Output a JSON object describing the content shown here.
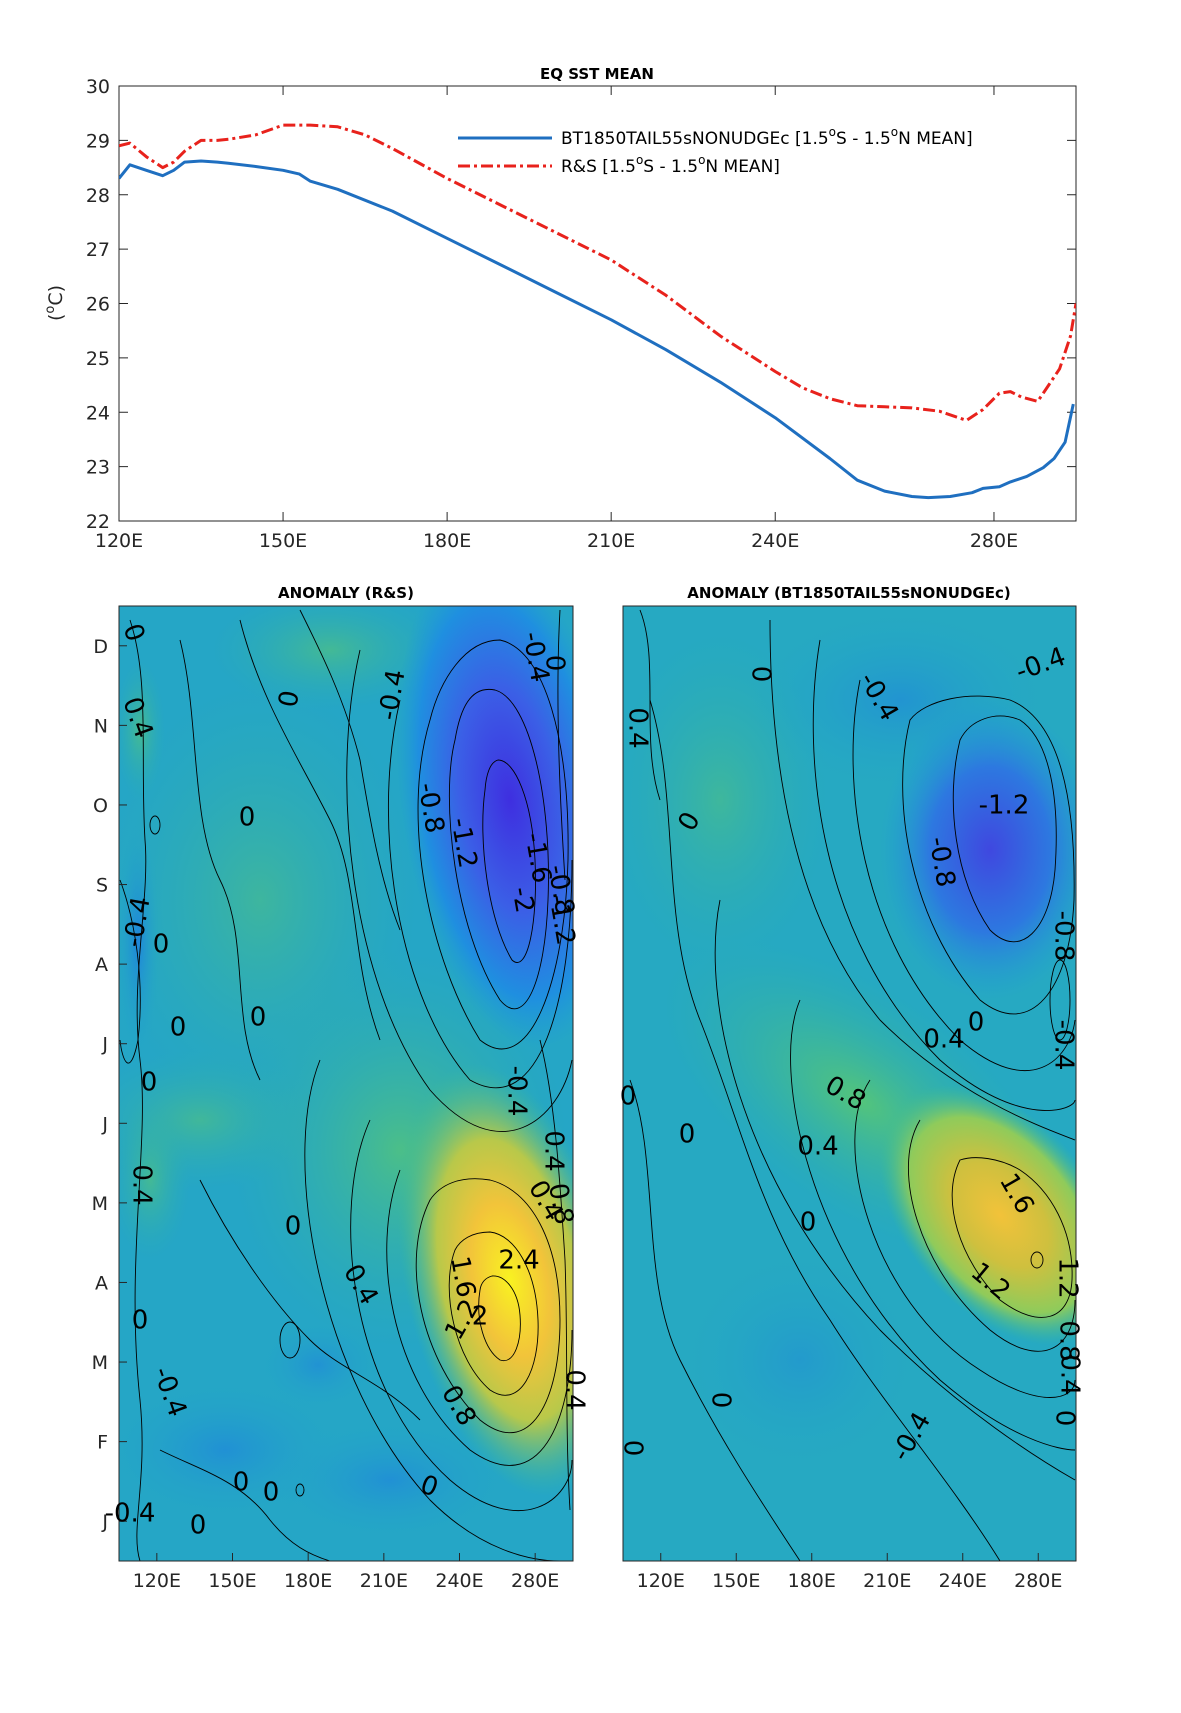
{
  "chart_data": [
    {
      "type": "line",
      "title": "EQ SST MEAN",
      "ylabel": "(oC)",
      "ylabel_parts": {
        "open": "(",
        "sup": "o",
        "unit": "C)"
      },
      "xlim": [
        120,
        295
      ],
      "ylim": [
        22,
        30
      ],
      "x_ticks": [
        120,
        150,
        180,
        210,
        240,
        280
      ],
      "x_tick_labels": [
        "120E",
        "150E",
        "180E",
        "210E",
        "240E",
        "280E"
      ],
      "y_ticks": [
        22,
        23,
        24,
        25,
        26,
        27,
        28,
        29,
        30
      ],
      "legend": "top-right",
      "series": [
        {
          "name": "BT1850TAIL55sNONUDGEc [1.5oS - 1.5oN MEAN]",
          "legend_parts": {
            "a": "BT1850TAIL55sNONUDGEc [1.5",
            "s1": "o",
            "b": "S - 1.5",
            "s2": "o",
            "c": "N MEAN]"
          },
          "color": "#1f6fc0",
          "style": "solid",
          "x": [
            120,
            122,
            125,
            128,
            130,
            132,
            135,
            138,
            140,
            145,
            150,
            153,
            155,
            160,
            170,
            180,
            190,
            200,
            210,
            220,
            230,
            240,
            250,
            255,
            260,
            265,
            268,
            272,
            276,
            278,
            281,
            283,
            286,
            289,
            291,
            293,
            294.5
          ],
          "y": [
            28.3,
            28.55,
            28.45,
            28.35,
            28.45,
            28.6,
            28.62,
            28.6,
            28.58,
            28.52,
            28.45,
            28.38,
            28.25,
            28.1,
            27.7,
            27.2,
            26.7,
            26.2,
            25.7,
            25.15,
            24.55,
            23.9,
            23.15,
            22.75,
            22.55,
            22.45,
            22.43,
            22.45,
            22.52,
            22.6,
            22.63,
            22.72,
            22.82,
            22.98,
            23.15,
            23.45,
            24.15
          ]
        },
        {
          "name": "R&S [1.5oS - 1.5oN MEAN]",
          "legend_parts": {
            "a": "R&S [1.5",
            "s1": "o",
            "b": "S - 1.5",
            "s2": "o",
            "c": "N MEAN]"
          },
          "color": "#e8221c",
          "style": "dashdot",
          "x": [
            120,
            122,
            125,
            128,
            130,
            132,
            135,
            138,
            140,
            145,
            150,
            155,
            160,
            165,
            170,
            180,
            190,
            200,
            210,
            220,
            230,
            240,
            245,
            250,
            255,
            260,
            265,
            270,
            275,
            278,
            281,
            283,
            285,
            288,
            290,
            292,
            294,
            295
          ],
          "y": [
            28.9,
            28.95,
            28.7,
            28.5,
            28.6,
            28.8,
            29.0,
            29.0,
            29.02,
            29.1,
            29.28,
            29.28,
            29.25,
            29.1,
            28.85,
            28.3,
            27.8,
            27.3,
            26.8,
            26.15,
            25.4,
            24.75,
            24.45,
            24.25,
            24.12,
            24.1,
            24.08,
            24.02,
            23.85,
            24.05,
            24.35,
            24.38,
            24.28,
            24.2,
            24.5,
            24.8,
            25.4,
            26.0
          ]
        }
      ]
    },
    {
      "type": "heatmap",
      "title": "ANOMALY (R&S)",
      "x_tick_labels": [
        "120E",
        "150E",
        "180E",
        "210E",
        "240E",
        "280E"
      ],
      "y_tick_labels": [
        "D",
        "N",
        "O",
        "S",
        "A",
        "J",
        "J",
        "M",
        "A",
        "M",
        "F",
        "J"
      ],
      "contour_labels": [
        "0",
        "0.4",
        "0",
        "-0.4",
        "-0.4",
        "0",
        "0",
        "-0.8",
        "-1.2",
        "-1.6",
        "-2",
        "-1.2",
        "-0.8",
        "-0.4",
        "0",
        "0",
        "0",
        "0",
        "-0.4",
        "0.4",
        "0.4",
        "0.4",
        "0",
        "0.4",
        "0.8",
        "1.6",
        "2.4",
        "2",
        "1.2",
        "0.8",
        "0.4",
        "0",
        "-0.4",
        "0",
        "0",
        "0",
        "-0.4",
        "0"
      ]
    },
    {
      "type": "heatmap",
      "title": "ANOMALY (BT1850TAIL55sNONUDGEc)",
      "x_tick_labels": [
        "120E",
        "150E",
        "180E",
        "210E",
        "240E",
        "280E"
      ],
      "contour_labels": [
        "0",
        "-0.4",
        "-0.4",
        "0.4",
        "0",
        "-1.2",
        "-0.8",
        "-0.8",
        "0",
        "0.4",
        "-0.4",
        "0.8",
        "0.4",
        "0",
        "0",
        "1.6",
        "1.2",
        "1.2",
        "0",
        "0.8",
        "0.4",
        "0",
        "0",
        "-0.4",
        "0"
      ]
    }
  ]
}
